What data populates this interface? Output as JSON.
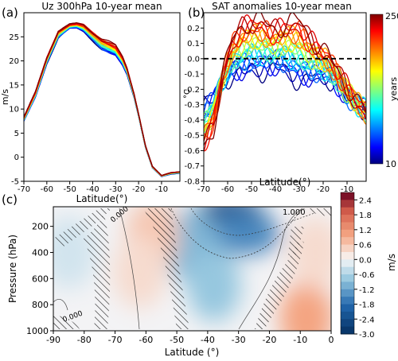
{
  "chart_data": [
    {
      "panel_label": "(a)",
      "type": "line",
      "title": "Uz 300hPa 10-year mean",
      "xlabel": "Latitude(°)",
      "ylabel": "m/s",
      "xlim": [
        -70,
        -2
      ],
      "ylim": [
        -5,
        30
      ],
      "xticks": [
        -70,
        -60,
        -50,
        -40,
        -30,
        -20,
        -10
      ],
      "xtick_labels": [
        "-70",
        "-60",
        "-50",
        "-40",
        "-30",
        "-20",
        "-10"
      ],
      "yticks": [
        -5,
        0,
        5,
        10,
        15,
        20,
        25
      ],
      "ytick_labels": [
        "-5",
        "0",
        "5",
        "10",
        "15",
        "20",
        "25"
      ],
      "n_series": 25,
      "series_color_by": "years (shared colorbar 10–250)",
      "envelope": {
        "x": [
          -70,
          -65,
          -60,
          -55,
          -50,
          -47,
          -44,
          -40,
          -36,
          -33,
          -30,
          -27,
          -25,
          -22,
          -20,
          -17,
          -14,
          -10,
          -6,
          -2
        ],
        "lower": [
          7.5,
          12.5,
          19.5,
          24.8,
          26.8,
          26.9,
          26.2,
          24.3,
          22.3,
          21.7,
          21.2,
          19.2,
          17.2,
          12.5,
          8.5,
          2.0,
          -2.2,
          -4.0,
          -3.5,
          -3.3
        ],
        "upper": [
          8.3,
          13.5,
          20.7,
          26.2,
          27.6,
          27.8,
          27.5,
          25.9,
          24.5,
          23.9,
          23.1,
          20.8,
          18.4,
          13.2,
          9.0,
          2.4,
          -1.9,
          -3.8,
          -3.2,
          -3.0
        ]
      }
    },
    {
      "panel_label": "(b)",
      "type": "line",
      "title": "SAT anomalies 10-year mean",
      "xlabel": "Latitude(°)",
      "ylabel": "°C",
      "xlim": [
        -70,
        -2
      ],
      "ylim": [
        -0.8,
        0.3
      ],
      "xticks": [
        -70,
        -60,
        -50,
        -40,
        -30,
        -20,
        -10
      ],
      "xtick_labels": [
        "-70",
        "-60",
        "-50",
        "-40",
        "-30",
        "-20",
        "-10"
      ],
      "yticks": [
        -0.8,
        -0.7,
        -0.6,
        -0.5,
        -0.4,
        -0.3,
        -0.2,
        -0.1,
        0.0,
        0.1,
        0.2
      ],
      "ytick_labels": [
        "-0.8",
        "-0.7",
        "-0.6",
        "-0.5",
        "-0.4",
        "-0.3",
        "-0.2",
        "-0.1",
        "0.0",
        "0.1",
        "0.2"
      ],
      "reference_line": {
        "y": 0.0,
        "style": "dashed",
        "color": "#000000"
      },
      "n_series": 25,
      "series_color_by": "years",
      "x": [
        -70,
        -66,
        -62,
        -58,
        -54,
        -50,
        -46,
        -42,
        -38,
        -34,
        -30,
        -26,
        -22,
        -18,
        -14,
        -10,
        -6,
        -2
      ],
      "series_profiles": {
        "early": [
          -0.3,
          -0.25,
          -0.15,
          -0.1,
          -0.1,
          -0.07,
          -0.08,
          -0.07,
          -0.06,
          -0.1,
          -0.14,
          -0.14,
          -0.12,
          -0.12,
          -0.18,
          -0.26,
          -0.3,
          -0.33
        ],
        "late": [
          -0.58,
          -0.45,
          -0.1,
          0.12,
          0.22,
          0.25,
          0.25,
          0.2,
          0.21,
          0.24,
          0.24,
          0.15,
          0.08,
          0.02,
          -0.08,
          -0.18,
          -0.28,
          -0.36
        ]
      },
      "colorbar": {
        "label": "years",
        "min": 10,
        "max": 250,
        "ticks": [
          10,
          250
        ]
      }
    },
    {
      "panel_label": "(c)",
      "type": "heatmap",
      "xlabel": "Latitude (°)",
      "ylabel": "Pressure (hPa)",
      "xlim": [
        -90,
        0
      ],
      "ylim": [
        1000,
        50
      ],
      "xticks": [
        -90,
        -80,
        -70,
        -60,
        -50,
        -40,
        -30,
        -20,
        -10,
        0
      ],
      "xtick_labels": [
        "-90",
        "-80",
        "-70",
        "-60",
        "-50",
        "-40",
        "-30",
        "-20",
        "-10",
        "0"
      ],
      "yticks": [
        200,
        400,
        600,
        800,
        1000
      ],
      "ytick_labels": [
        "200",
        "400",
        "600",
        "800",
        "1000"
      ],
      "contour_labels": [
        "1.000",
        "0.000",
        "0.000"
      ],
      "fields": [
        {
          "lat": -33,
          "p": 130,
          "v": -2.4
        },
        {
          "lat": -28,
          "p": 260,
          "v": -1.5
        },
        {
          "lat": -45,
          "p": 350,
          "v": -1.0
        },
        {
          "lat": -38,
          "p": 650,
          "v": -0.8
        },
        {
          "lat": -58,
          "p": 280,
          "v": 0.6
        },
        {
          "lat": -62,
          "p": 550,
          "v": 0.35
        },
        {
          "lat": -8,
          "p": 900,
          "v": 1.0
        },
        {
          "lat": -5,
          "p": 400,
          "v": 0.35
        },
        {
          "lat": -85,
          "p": 400,
          "v": -0.3
        }
      ],
      "colorbar": {
        "label": "m/s",
        "min": -3.0,
        "max": 2.7,
        "ticks": [
          2.4,
          1.8,
          1.2,
          0.6,
          0.0,
          -0.6,
          -1.2,
          -1.8,
          -2.4,
          -3.0
        ],
        "tick_labels": [
          "2.4",
          "1.8",
          "1.2",
          "0.6",
          "0.0",
          "-0.6",
          "-1.2",
          "-1.8",
          "-2.4",
          "-3.0"
        ]
      }
    }
  ]
}
